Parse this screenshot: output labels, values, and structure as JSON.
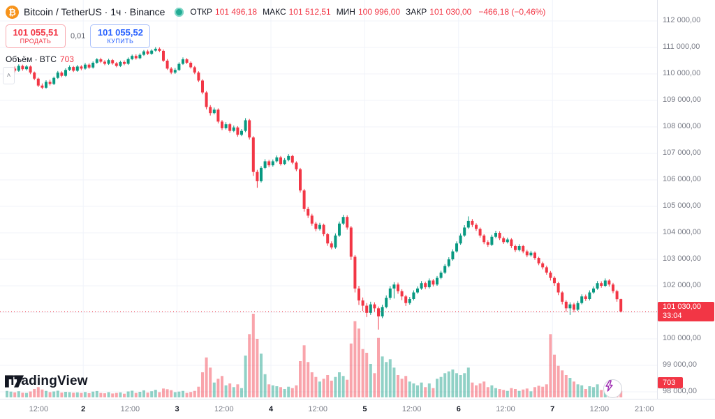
{
  "header": {
    "symbol_title": "Bitcoin / TetherUS · 1ч · Binance",
    "ohlc_items": [
      {
        "label": "ОТКР",
        "value": "101 496,18"
      },
      {
        "label": "МАКС",
        "value": "101 512,51"
      },
      {
        "label": "МИН",
        "value": "100 996,00"
      },
      {
        "label": "ЗАКР",
        "value": "101 030,00"
      }
    ],
    "change": "−466,18 (−0,46%)",
    "trade": {
      "sell_price": "101 055,51",
      "sell_label": "ПРОДАТЬ",
      "spread": "0,01",
      "buy_price": "101 055,52",
      "buy_label": "КУПИТЬ"
    },
    "volume_label": "Объём · BTC",
    "volume_value": "703",
    "collapse_glyph": "˄"
  },
  "footer": {
    "logo_text": "TradingView"
  },
  "price_axis": {
    "last_price": "101 030,00",
    "countdown": "33:04",
    "volume_badge": "703"
  },
  "colors": {
    "up": "#089981",
    "down": "#f23645",
    "up_vol": "rgba(8,153,129,0.45)",
    "down_vol": "rgba(242,54,69,0.45)",
    "buy": "#2962ff",
    "sell": "#f23645",
    "bitcoin_orange": "#f7931a",
    "grid": "#f0f3fa"
  },
  "chart_data": {
    "type": "candlestick",
    "symbol": "Bitcoin / TetherUS",
    "interval": "1ч",
    "exchange": "Binance",
    "last": {
      "open": 101496.18,
      "high": 101512.51,
      "low": 100996.0,
      "close": 101030.0,
      "change": -466.18,
      "change_pct": -0.46,
      "volume_btc": 703
    },
    "y_axis": {
      "max": 112000,
      "min": 98000,
      "step": 1000,
      "labels": [
        "112 000,00",
        "111 000,00",
        "110 000,00",
        "109 000,00",
        "108 000,00",
        "107 000,00",
        "106 000,00",
        "105 000,00",
        "104 000,00",
        "103 000,00",
        "102 000,00",
        "101 000,00",
        "100 000,00",
        "99 000,00",
        "98 000,00"
      ]
    },
    "time_ticks": [
      {
        "label": "12:00",
        "i": 8.1,
        "major": false
      },
      {
        "label": "2",
        "i": 19.5,
        "major": true
      },
      {
        "label": "12:00",
        "i": 31.5,
        "major": false
      },
      {
        "label": "3",
        "i": 43.5,
        "major": true
      },
      {
        "label": "12:00",
        "i": 55.5,
        "major": false
      },
      {
        "label": "4",
        "i": 67.5,
        "major": true
      },
      {
        "label": "12:00",
        "i": 79.5,
        "major": false
      },
      {
        "label": "5",
        "i": 91.5,
        "major": true
      },
      {
        "label": "12:00",
        "i": 103.5,
        "major": false
      },
      {
        "label": "6",
        "i": 115.5,
        "major": true
      },
      {
        "label": "12:00",
        "i": 127.5,
        "major": false
      },
      {
        "label": "7",
        "i": 139.5,
        "major": true
      },
      {
        "label": "12:00",
        "i": 151.5,
        "major": false
      },
      {
        "label": "21:00",
        "i": 163,
        "major": false
      }
    ],
    "day_gridline_indices": [
      19.5,
      43.5,
      67.5,
      91.5,
      115.5,
      139.5
    ],
    "candles_format": [
      "open",
      "high",
      "low",
      "close",
      "volume"
    ],
    "candles": [
      [
        109900,
        110120,
        109850,
        110050,
        700
      ],
      [
        110050,
        110260,
        110000,
        110200,
        620
      ],
      [
        110200,
        110280,
        110060,
        110120,
        540
      ],
      [
        110120,
        110360,
        110080,
        110300,
        660
      ],
      [
        110300,
        110350,
        110120,
        110180,
        500
      ],
      [
        110180,
        110340,
        110130,
        110280,
        480
      ],
      [
        110280,
        110320,
        109990,
        110050,
        640
      ],
      [
        110050,
        110090,
        109760,
        109820,
        900
      ],
      [
        109820,
        109860,
        109500,
        109560,
        1100
      ],
      [
        109560,
        109640,
        109420,
        109480,
        850
      ],
      [
        109480,
        109760,
        109440,
        109700,
        700
      ],
      [
        109700,
        109780,
        109560,
        109620,
        560
      ],
      [
        109620,
        109900,
        109580,
        109850,
        640
      ],
      [
        109850,
        110110,
        109810,
        110050,
        720
      ],
      [
        110050,
        110100,
        109870,
        109930,
        520
      ],
      [
        109930,
        110210,
        109890,
        110150,
        600
      ],
      [
        110150,
        110320,
        110110,
        110260,
        560
      ],
      [
        110260,
        110300,
        110070,
        110120,
        500
      ],
      [
        110120,
        110340,
        110080,
        110280,
        540
      ],
      [
        110280,
        110330,
        110140,
        110200,
        480
      ],
      [
        110200,
        110410,
        110160,
        110350,
        580
      ],
      [
        110350,
        110400,
        110190,
        110240,
        460
      ],
      [
        110240,
        110470,
        110200,
        110420,
        620
      ],
      [
        110420,
        110600,
        110380,
        110550,
        680
      ],
      [
        110550,
        110610,
        110410,
        110460,
        480
      ],
      [
        110460,
        110520,
        110330,
        110380,
        440
      ],
      [
        110380,
        110570,
        110340,
        110520,
        560
      ],
      [
        110520,
        110560,
        110350,
        110400,
        420
      ],
      [
        110400,
        110450,
        110250,
        110300,
        480
      ],
      [
        110300,
        110500,
        110260,
        110450,
        540
      ],
      [
        110450,
        110510,
        110330,
        110380,
        400
      ],
      [
        110380,
        110620,
        110340,
        110560,
        640
      ],
      [
        110560,
        110730,
        110520,
        110680,
        720
      ],
      [
        110680,
        110740,
        110540,
        110590,
        480
      ],
      [
        110590,
        110780,
        110550,
        110720,
        600
      ],
      [
        110720,
        110900,
        110680,
        110850,
        760
      ],
      [
        110850,
        110910,
        110710,
        110760,
        520
      ],
      [
        110760,
        110930,
        110720,
        110880,
        660
      ],
      [
        110880,
        111010,
        110840,
        110950,
        820
      ],
      [
        110950,
        111000,
        110820,
        110870,
        560
      ],
      [
        110870,
        110920,
        110450,
        110500,
        950
      ],
      [
        110500,
        110560,
        110150,
        110200,
        880
      ],
      [
        110200,
        110260,
        109990,
        110050,
        780
      ],
      [
        110050,
        110220,
        110000,
        110150,
        560
      ],
      [
        110150,
        110440,
        110110,
        110380,
        620
      ],
      [
        110380,
        110620,
        110340,
        110550,
        700
      ],
      [
        110550,
        110600,
        110370,
        110420,
        480
      ],
      [
        110420,
        110470,
        110200,
        110250,
        580
      ],
      [
        110250,
        110300,
        109990,
        110050,
        700
      ],
      [
        110050,
        110100,
        109690,
        109750,
        1150
      ],
      [
        109750,
        109800,
        109230,
        109300,
        2700
      ],
      [
        109300,
        109350,
        108660,
        108750,
        4300
      ],
      [
        108750,
        108820,
        108430,
        108520,
        3200
      ],
      [
        108520,
        108730,
        108470,
        108650,
        1600
      ],
      [
        108650,
        108700,
        108130,
        108200,
        2000
      ],
      [
        108200,
        108260,
        107880,
        107950,
        2300
      ],
      [
        107950,
        108180,
        107900,
        108100,
        1300
      ],
      [
        108100,
        108150,
        107780,
        107850,
        1500
      ],
      [
        107850,
        108050,
        107800,
        107980,
        1100
      ],
      [
        107980,
        108030,
        107630,
        107700,
        1400
      ],
      [
        107700,
        107920,
        107650,
        107850,
        1000
      ],
      [
        107850,
        108330,
        107800,
        108250,
        4500
      ],
      [
        108250,
        108300,
        107520,
        107600,
        6800
      ],
      [
        107600,
        107650,
        106150,
        106300,
        9000
      ],
      [
        106300,
        106380,
        105700,
        105950,
        6300
      ],
      [
        105950,
        106520,
        105900,
        106450,
        4700
      ],
      [
        106450,
        106780,
        106400,
        106700,
        2500
      ],
      [
        106700,
        106760,
        106480,
        106550,
        1400
      ],
      [
        106550,
        106770,
        106500,
        106700,
        1300
      ],
      [
        106700,
        106920,
        106650,
        106850,
        1200
      ],
      [
        106850,
        106900,
        106540,
        106600,
        1100
      ],
      [
        106600,
        106820,
        106560,
        106750,
        900
      ],
      [
        106750,
        106970,
        106700,
        106900,
        1150
      ],
      [
        106900,
        106950,
        106590,
        106650,
        1000
      ],
      [
        106650,
        106700,
        106330,
        106400,
        1300
      ],
      [
        106400,
        106450,
        105520,
        105600,
        3900
      ],
      [
        105600,
        105660,
        104800,
        104900,
        5600
      ],
      [
        104900,
        104980,
        104560,
        104650,
        3800
      ],
      [
        104650,
        104720,
        104270,
        104350,
        2700
      ],
      [
        104350,
        104420,
        104060,
        104150,
        2200
      ],
      [
        104150,
        104380,
        104090,
        104300,
        1700
      ],
      [
        104300,
        104350,
        103870,
        103950,
        2000
      ],
      [
        103950,
        104000,
        103510,
        103600,
        2400
      ],
      [
        103600,
        103680,
        103380,
        103450,
        1800
      ],
      [
        103450,
        103980,
        103400,
        103900,
        2200
      ],
      [
        103900,
        104430,
        103850,
        104350,
        2700
      ],
      [
        104350,
        104680,
        104290,
        104600,
        2300
      ],
      [
        104600,
        104660,
        104120,
        104200,
        1900
      ],
      [
        104200,
        104260,
        102980,
        103100,
        5800
      ],
      [
        103100,
        103160,
        101750,
        101900,
        8200
      ],
      [
        101900,
        102000,
        101280,
        101450,
        7400
      ],
      [
        101450,
        101560,
        101050,
        101250,
        5200
      ],
      [
        101250,
        101350,
        100820,
        100980,
        4800
      ],
      [
        100980,
        101400,
        100900,
        101300,
        3600
      ],
      [
        101300,
        101380,
        101040,
        101150,
        2600
      ],
      [
        101150,
        101220,
        100350,
        100850,
        6400
      ],
      [
        100850,
        101290,
        100780,
        101200,
        4400
      ],
      [
        101200,
        101640,
        101150,
        101550,
        3800
      ],
      [
        101550,
        101990,
        101480,
        101900,
        4100
      ],
      [
        101900,
        102140,
        101520,
        102050,
        3200
      ],
      [
        102050,
        102120,
        101700,
        101800,
        2400
      ],
      [
        101800,
        101870,
        101460,
        101600,
        2000
      ],
      [
        101600,
        101660,
        101240,
        101350,
        2300
      ],
      [
        101350,
        101580,
        101290,
        101500,
        1700
      ],
      [
        101500,
        101830,
        101450,
        101750,
        1500
      ],
      [
        101750,
        101980,
        101700,
        101900,
        1300
      ],
      [
        101900,
        102180,
        101850,
        102100,
        1600
      ],
      [
        102100,
        102160,
        101880,
        101950,
        1100
      ],
      [
        101950,
        102280,
        101900,
        102200,
        1500
      ],
      [
        102200,
        102260,
        101980,
        102050,
        1000
      ],
      [
        102050,
        102370,
        102000,
        102300,
        2000
      ],
      [
        102300,
        102570,
        102250,
        102500,
        2200
      ],
      [
        102500,
        102820,
        102450,
        102750,
        2600
      ],
      [
        102750,
        103080,
        102700,
        103000,
        2800
      ],
      [
        103000,
        103380,
        102950,
        103300,
        3000
      ],
      [
        103300,
        103680,
        103250,
        103600,
        2600
      ],
      [
        103600,
        103980,
        103550,
        103900,
        2400
      ],
      [
        103900,
        104290,
        103850,
        104200,
        2600
      ],
      [
        104200,
        104620,
        104150,
        104450,
        3200
      ],
      [
        104450,
        104520,
        104220,
        104300,
        1600
      ],
      [
        104300,
        104360,
        104070,
        104150,
        1300
      ],
      [
        104150,
        104200,
        103820,
        103900,
        1500
      ],
      [
        103900,
        103950,
        103570,
        103650,
        1700
      ],
      [
        103650,
        103720,
        103470,
        103550,
        1100
      ],
      [
        103550,
        103930,
        103500,
        103850,
        1300
      ],
      [
        103850,
        104080,
        103800,
        104000,
        1000
      ],
      [
        104000,
        104060,
        103730,
        103800,
        900
      ],
      [
        103800,
        103860,
        103580,
        103650,
        800
      ],
      [
        103650,
        103820,
        103600,
        103750,
        700
      ],
      [
        103750,
        103800,
        103430,
        103500,
        1000
      ],
      [
        103500,
        103560,
        103280,
        103350,
        900
      ],
      [
        103350,
        103570,
        103300,
        103500,
        700
      ],
      [
        103500,
        103550,
        103230,
        103300,
        850
      ],
      [
        103300,
        103360,
        103080,
        103150,
        950
      ],
      [
        103150,
        103320,
        103100,
        103250,
        650
      ],
      [
        103250,
        103300,
        102980,
        103050,
        1100
      ],
      [
        103050,
        103100,
        102780,
        102850,
        1250
      ],
      [
        102850,
        102910,
        102620,
        102700,
        1150
      ],
      [
        102700,
        102760,
        102420,
        102500,
        1400
      ],
      [
        102500,
        102560,
        102200,
        102300,
        6800
      ],
      [
        102300,
        102360,
        102000,
        102100,
        4600
      ],
      [
        102100,
        102150,
        101650,
        101750,
        3400
      ],
      [
        101750,
        101800,
        101300,
        101400,
        2900
      ],
      [
        101400,
        101460,
        101020,
        101150,
        2400
      ],
      [
        101150,
        101380,
        100900,
        101300,
        2100
      ],
      [
        101300,
        101360,
        101000,
        101100,
        1700
      ],
      [
        101100,
        101430,
        101050,
        101350,
        1400
      ],
      [
        101350,
        101680,
        101300,
        101600,
        1300
      ],
      [
        101600,
        101670,
        101430,
        101500,
        900
      ],
      [
        101500,
        101830,
        101450,
        101750,
        1200
      ],
      [
        101750,
        101980,
        101700,
        101900,
        1100
      ],
      [
        101900,
        102180,
        101850,
        102100,
        1400
      ],
      [
        102100,
        102170,
        101930,
        102000,
        800
      ],
      [
        102000,
        102280,
        101950,
        102200,
        1200
      ],
      [
        102200,
        102260,
        101970,
        102050,
        900
      ],
      [
        102050,
        102110,
        101720,
        101800,
        1200
      ],
      [
        101800,
        101850,
        101400,
        101496,
        1700
      ],
      [
        101496.18,
        101512.51,
        100996,
        101030,
        703
      ]
    ]
  }
}
